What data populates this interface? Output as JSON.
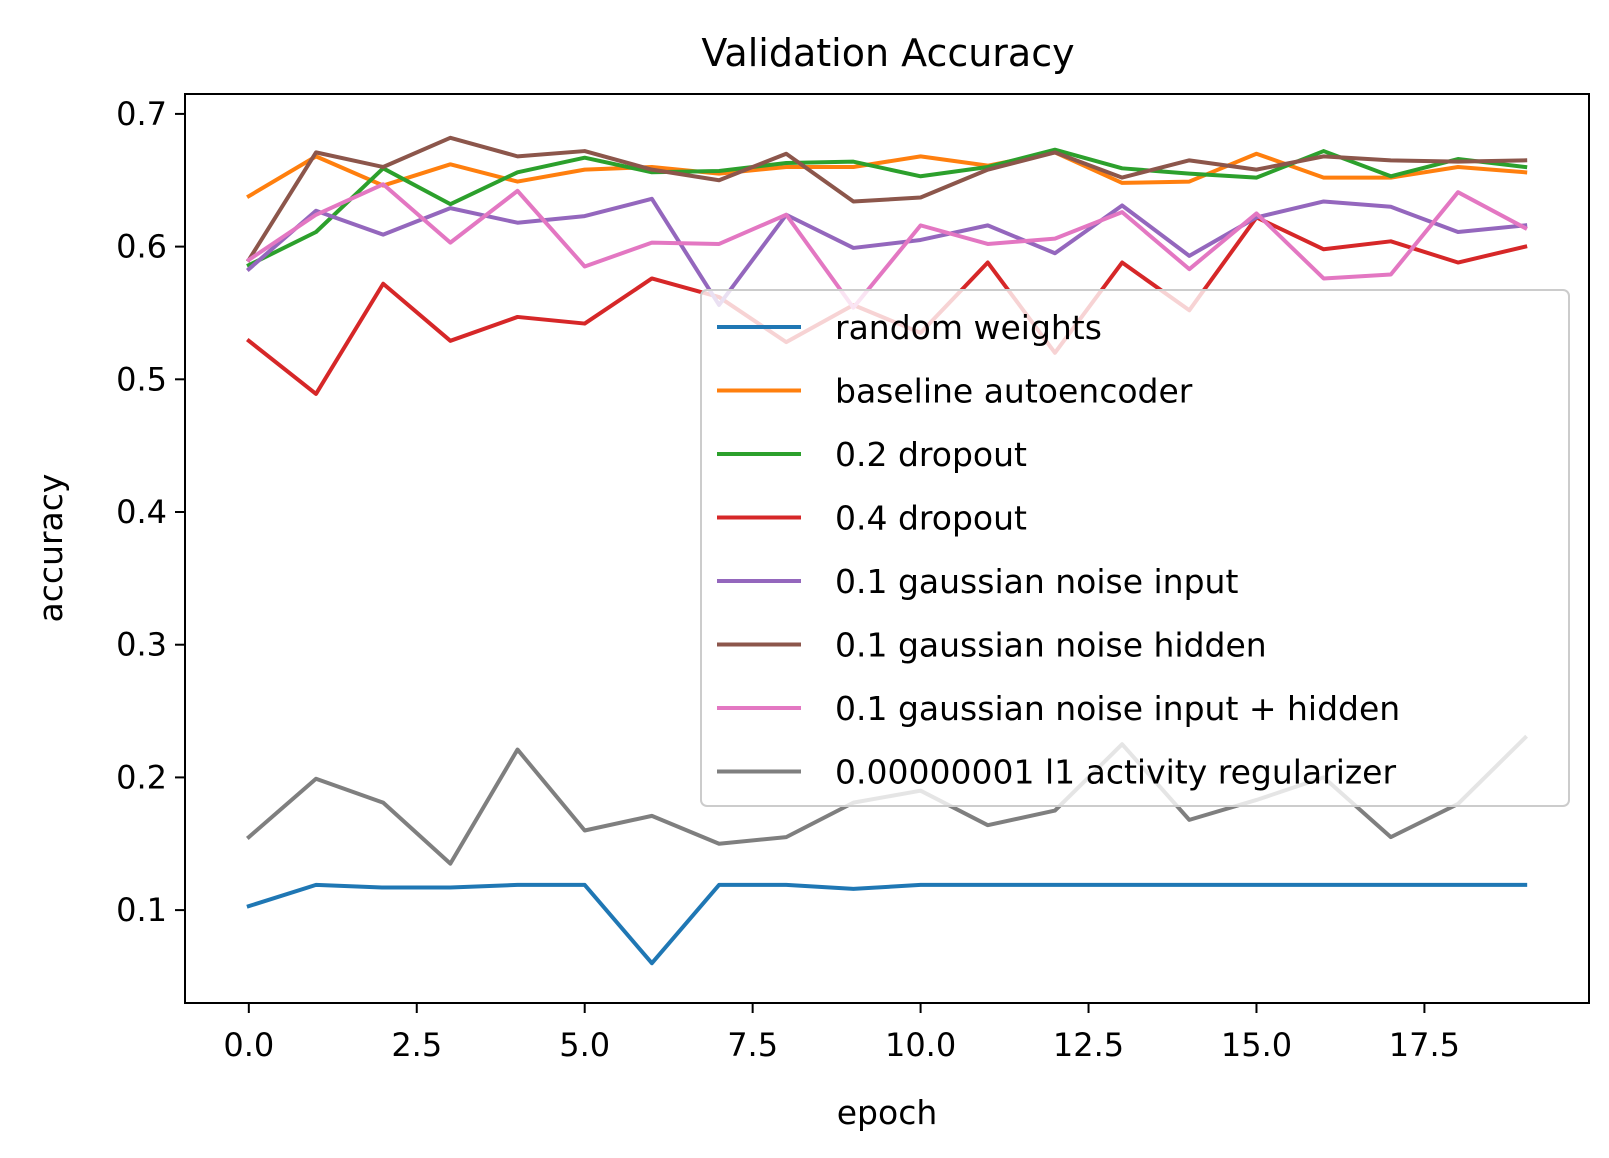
{
  "chart_data": {
    "type": "line",
    "title": "Validation Accuracy",
    "xlabel": "epoch",
    "ylabel": "accuracy",
    "xlim": [
      -0.95,
      19.95
    ],
    "ylim": [
      0.03,
      0.715
    ],
    "xticks": [
      0.0,
      2.5,
      5.0,
      7.5,
      10.0,
      12.5,
      15.0,
      17.5
    ],
    "xtick_labels": [
      "0.0",
      "2.5",
      "5.0",
      "7.5",
      "10.0",
      "12.5",
      "15.0",
      "17.5"
    ],
    "yticks": [
      0.1,
      0.2,
      0.3,
      0.4,
      0.5,
      0.6,
      0.7
    ],
    "ytick_labels": [
      "0.1",
      "0.2",
      "0.3",
      "0.4",
      "0.5",
      "0.6",
      "0.7"
    ],
    "grid": false,
    "legend_position": "center-right",
    "x": [
      0,
      1,
      2,
      3,
      4,
      5,
      6,
      7,
      8,
      9,
      10,
      11,
      12,
      13,
      14,
      15,
      16,
      17,
      18,
      19
    ],
    "series": [
      {
        "name": "random weights",
        "color": "#1f77b4",
        "values": [
          0.103,
          0.119,
          0.117,
          0.117,
          0.119,
          0.119,
          0.06,
          0.119,
          0.119,
          0.116,
          0.119,
          0.119,
          0.119,
          0.119,
          0.119,
          0.119,
          0.119,
          0.119,
          0.119,
          0.119
        ]
      },
      {
        "name": "baseline autoencoder",
        "color": "#ff7f0e",
        "values": [
          0.638,
          0.668,
          0.646,
          0.662,
          0.649,
          0.658,
          0.66,
          0.655,
          0.66,
          0.66,
          0.668,
          0.661,
          0.671,
          0.648,
          0.649,
          0.67,
          0.652,
          0.652,
          0.66,
          0.656
        ]
      },
      {
        "name": "0.2 dropout",
        "color": "#2ca02c",
        "values": [
          0.586,
          0.611,
          0.659,
          0.632,
          0.656,
          0.667,
          0.656,
          0.657,
          0.663,
          0.664,
          0.653,
          0.66,
          0.673,
          0.659,
          0.655,
          0.652,
          0.672,
          0.653,
          0.666,
          0.66
        ]
      },
      {
        "name": "0.4 dropout",
        "color": "#d62728",
        "values": [
          0.529,
          0.489,
          0.572,
          0.529,
          0.547,
          0.542,
          0.576,
          0.562,
          0.528,
          0.556,
          0.535,
          0.588,
          0.52,
          0.588,
          0.552,
          0.622,
          0.598,
          0.604,
          0.588,
          0.6
        ]
      },
      {
        "name": "0.1 gaussian noise input",
        "color": "#9467bd",
        "values": [
          0.583,
          0.627,
          0.609,
          0.629,
          0.618,
          0.623,
          0.636,
          0.556,
          0.624,
          0.599,
          0.605,
          0.616,
          0.595,
          0.631,
          0.593,
          0.622,
          0.634,
          0.63,
          0.611,
          0.616
        ]
      },
      {
        "name": "0.1 gaussian noise hidden",
        "color": "#8c564b",
        "values": [
          0.59,
          0.671,
          0.66,
          0.682,
          0.668,
          0.672,
          0.658,
          0.65,
          0.67,
          0.634,
          0.637,
          0.658,
          0.671,
          0.652,
          0.665,
          0.658,
          0.668,
          0.665,
          0.664,
          0.665
        ]
      },
      {
        "name": "0.1 gaussian noise input + hidden",
        "color": "#e377c2",
        "values": [
          0.59,
          0.624,
          0.647,
          0.603,
          0.642,
          0.585,
          0.603,
          0.602,
          0.624,
          0.554,
          0.616,
          0.602,
          0.606,
          0.626,
          0.583,
          0.625,
          0.576,
          0.579,
          0.641,
          0.614
        ]
      },
      {
        "name": "0.00000001 l1 activity regularizer",
        "color": "#7f7f7f",
        "values": [
          0.155,
          0.199,
          0.181,
          0.135,
          0.221,
          0.16,
          0.171,
          0.15,
          0.155,
          0.181,
          0.19,
          0.164,
          0.175,
          0.225,
          0.168,
          0.183,
          0.2,
          0.155,
          0.18,
          0.23
        ]
      }
    ]
  }
}
